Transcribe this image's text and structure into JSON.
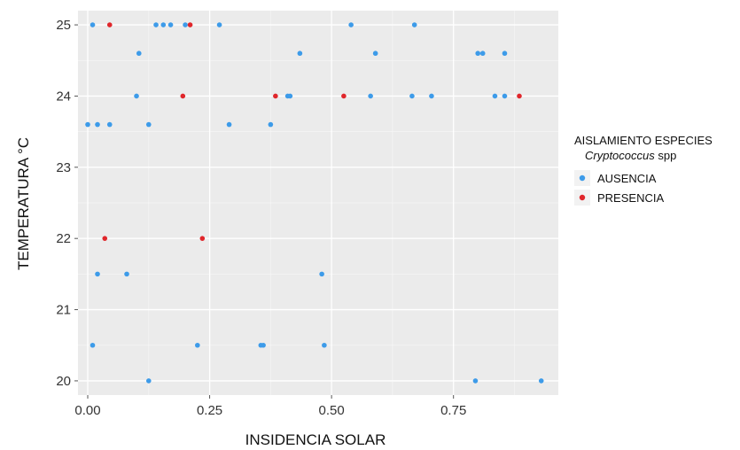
{
  "chart_data": {
    "type": "scatter",
    "xlabel": "INSIDENCIA SOLAR",
    "ylabel": "TEMPERATURA °C",
    "xlim": [
      -0.02,
      0.965
    ],
    "ylim": [
      19.8,
      25.2
    ],
    "x_ticks": [
      0.0,
      0.25,
      0.5,
      0.75
    ],
    "x_tick_labels": [
      "0.00",
      "0.25",
      "0.50",
      "0.75"
    ],
    "y_ticks": [
      20,
      21,
      22,
      23,
      24,
      25
    ],
    "y_tick_labels": [
      "20",
      "21",
      "22",
      "23",
      "24",
      "25"
    ],
    "grid": true,
    "legend": {
      "title": "AISLAMIENTO ESPECIES",
      "subtitle_italic": "Cryptococcus",
      "subtitle_rest": " spp",
      "placement": "right"
    },
    "series": [
      {
        "name": "AUSENCIA",
        "color": "#3d9be9",
        "points": [
          [
            0.01,
            25
          ],
          [
            0.14,
            25
          ],
          [
            0.155,
            25
          ],
          [
            0.17,
            25
          ],
          [
            0.2,
            25
          ],
          [
            0.27,
            25
          ],
          [
            0.54,
            25
          ],
          [
            0.67,
            25
          ],
          [
            0.105,
            24.6
          ],
          [
            0.435,
            24.6
          ],
          [
            0.59,
            24.6
          ],
          [
            0.8,
            24.6
          ],
          [
            0.81,
            24.6
          ],
          [
            0.855,
            24.6
          ],
          [
            0.1,
            24
          ],
          [
            0.41,
            24
          ],
          [
            0.415,
            24
          ],
          [
            0.58,
            24
          ],
          [
            0.665,
            24
          ],
          [
            0.705,
            24
          ],
          [
            0.835,
            24
          ],
          [
            0.855,
            24
          ],
          [
            0.0,
            23.6
          ],
          [
            0.02,
            23.6
          ],
          [
            0.045,
            23.6
          ],
          [
            0.125,
            23.6
          ],
          [
            0.29,
            23.6
          ],
          [
            0.375,
            23.6
          ],
          [
            0.02,
            21.5
          ],
          [
            0.08,
            21.5
          ],
          [
            0.48,
            21.5
          ],
          [
            0.01,
            20.5
          ],
          [
            0.225,
            20.5
          ],
          [
            0.355,
            20.5
          ],
          [
            0.36,
            20.5
          ],
          [
            0.485,
            20.5
          ],
          [
            0.125,
            20
          ],
          [
            0.795,
            20
          ],
          [
            0.93,
            20
          ]
        ]
      },
      {
        "name": "PRESENCIA",
        "color": "#e0262b",
        "points": [
          [
            0.045,
            25
          ],
          [
            0.21,
            25
          ],
          [
            0.195,
            24
          ],
          [
            0.385,
            24
          ],
          [
            0.525,
            24
          ],
          [
            0.885,
            24
          ],
          [
            0.035,
            22
          ],
          [
            0.235,
            22
          ]
        ]
      }
    ]
  }
}
